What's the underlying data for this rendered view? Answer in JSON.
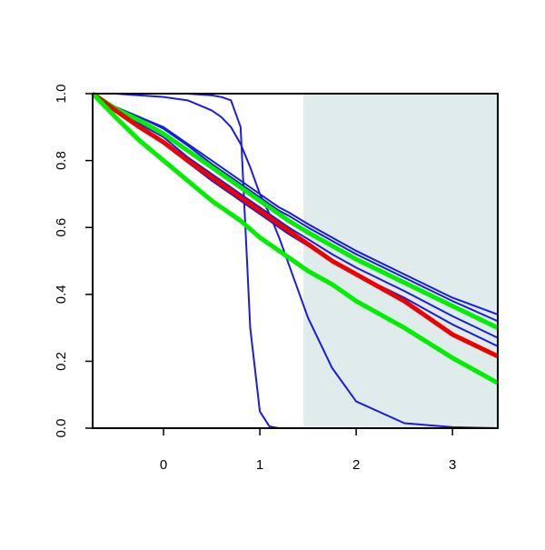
{
  "chart_data": {
    "type": "line",
    "x": [
      -0.736,
      -0.5,
      -0.25,
      0,
      0.25,
      0.5,
      0.6,
      0.7,
      0.8,
      0.9,
      1,
      1.1,
      1.2,
      1.3,
      1.5,
      1.75,
      2,
      2.5,
      3,
      3.47
    ],
    "series": [
      {
        "color": "#1c1cdc",
        "line_width": 2,
        "values": [
          1,
          0.96,
          0.93,
          0.9,
          0.85,
          0.8,
          0.78,
          0.76,
          0.74,
          0.72,
          0.7,
          0.68,
          0.66,
          0.645,
          0.61,
          0.57,
          0.53,
          0.46,
          0.39,
          0.34
        ]
      },
      {
        "color": "#1c1cdc",
        "line_width": 2,
        "values": [
          1,
          0.96,
          0.93,
          0.895,
          0.845,
          0.79,
          0.77,
          0.75,
          0.73,
          0.71,
          0.69,
          0.67,
          0.65,
          0.635,
          0.6,
          0.56,
          0.52,
          0.45,
          0.38,
          0.32
        ]
      },
      {
        "color": "#1c1cdc",
        "line_width": 2,
        "values": [
          1,
          0.95,
          0.91,
          0.87,
          0.81,
          0.76,
          0.74,
          0.72,
          0.7,
          0.68,
          0.66,
          0.64,
          0.62,
          0.6,
          0.565,
          0.52,
          0.48,
          0.41,
          0.335,
          0.27
        ]
      },
      {
        "color": "#1c1cdc",
        "line_width": 2,
        "values": [
          1,
          0.95,
          0.9,
          0.85,
          0.795,
          0.74,
          0.72,
          0.7,
          0.68,
          0.66,
          0.64,
          0.62,
          0.6,
          0.58,
          0.545,
          0.5,
          0.46,
          0.39,
          0.31,
          0.245
        ]
      },
      {
        "color": "#1c1cdc",
        "line_width": 2,
        "values": [
          1,
          1,
          1,
          1,
          1,
          0.995,
          0.99,
          0.98,
          0.9,
          0.3,
          0.05,
          0.005,
          0,
          0,
          0,
          0,
          0,
          0,
          0,
          0
        ]
      },
      {
        "color": "#1c1cdc",
        "line_width": 2,
        "values": [
          1,
          1,
          0.995,
          0.99,
          0.98,
          0.95,
          0.93,
          0.9,
          0.85,
          0.78,
          0.7,
          0.64,
          0.57,
          0.49,
          0.33,
          0.18,
          0.08,
          0.015,
          0.003,
          0
        ]
      },
      {
        "color": "#00ee00",
        "line_width": 5,
        "values": [
          1,
          0.955,
          0.92,
          0.88,
          0.83,
          0.78,
          0.76,
          0.74,
          0.72,
          0.7,
          0.68,
          0.66,
          0.64,
          0.62,
          0.585,
          0.545,
          0.505,
          0.435,
          0.365,
          0.3
        ]
      },
      {
        "color": "#ee0000",
        "line_width": 5,
        "values": [
          1,
          0.95,
          0.9,
          0.855,
          0.8,
          0.75,
          0.73,
          0.71,
          0.69,
          0.67,
          0.65,
          0.63,
          0.61,
          0.59,
          0.55,
          0.5,
          0.46,
          0.38,
          0.28,
          0.215
        ]
      },
      {
        "color": "#00ee00",
        "line_width": 5,
        "values": [
          1,
          0.93,
          0.86,
          0.8,
          0.74,
          0.68,
          0.66,
          0.64,
          0.62,
          0.595,
          0.57,
          0.55,
          0.53,
          0.51,
          0.47,
          0.43,
          0.38,
          0.3,
          0.21,
          0.135
        ]
      }
    ],
    "xlim": [
      -0.736,
      3.47
    ],
    "ylim": [
      0,
      1
    ],
    "xticks": [
      0,
      1,
      2,
      3
    ],
    "yticks": [
      {
        "value": 0,
        "label": "0.0"
      },
      0.2,
      0.4,
      0.6,
      0.8,
      {
        "value": 1,
        "label": "1.0"
      }
    ],
    "shaded_region": {
      "xmin": 1.453,
      "xmax": 3.47,
      "color": "#e0ecec"
    }
  }
}
